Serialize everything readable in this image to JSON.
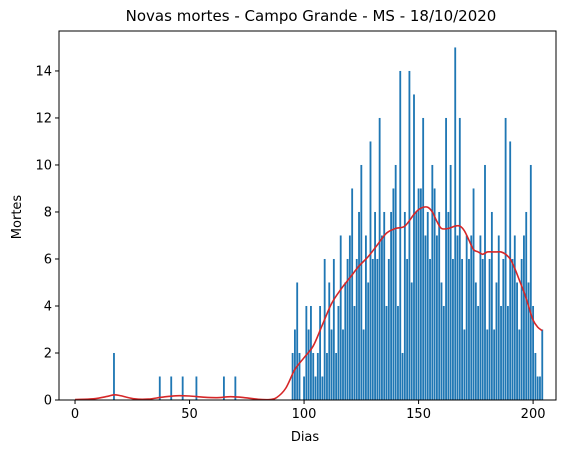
{
  "chart_data": {
    "type": "bar",
    "title": "Novas mortes - Campo Grande - MS - 18/10/2020",
    "xlabel": "Dias",
    "ylabel": "Mortes",
    "xlim": [
      -7,
      210
    ],
    "ylim": [
      0,
      15.7
    ],
    "x_ticks": [
      0,
      50,
      100,
      150,
      200
    ],
    "y_ticks": [
      0,
      2,
      4,
      6,
      8,
      10,
      12,
      14
    ],
    "grid": false,
    "colors": {
      "bars": "#1f77b4",
      "trend": "#d62728",
      "axes": "#000000"
    },
    "series": [
      {
        "kind": "bar",
        "x": [
          17,
          37,
          42,
          47,
          53,
          65,
          70,
          95,
          96,
          97,
          98,
          100,
          101,
          102,
          103,
          104,
          105,
          106,
          107,
          108,
          109,
          110,
          111,
          112,
          113,
          114,
          115,
          116,
          117,
          118,
          119,
          120,
          121,
          122,
          123,
          124,
          125,
          126,
          127,
          128,
          129,
          130,
          131,
          132,
          133,
          134,
          135,
          136,
          137,
          138,
          139,
          140,
          141,
          142,
          143,
          144,
          145,
          146,
          147,
          148,
          149,
          150,
          151,
          152,
          153,
          154,
          155,
          156,
          157,
          158,
          159,
          160,
          161,
          162,
          163,
          164,
          165,
          166,
          167,
          168,
          169,
          170,
          171,
          172,
          173,
          174,
          175,
          176,
          177,
          178,
          179,
          180,
          181,
          182,
          183,
          184,
          185,
          186,
          187,
          188,
          189,
          190,
          191,
          192,
          193,
          194,
          195,
          196,
          197,
          198,
          199,
          200,
          201,
          202,
          203,
          204
        ],
        "values": [
          2,
          1,
          1,
          1,
          1,
          1,
          1,
          2,
          3,
          5,
          2,
          1,
          4,
          3,
          4,
          2,
          1,
          2,
          4,
          1,
          6,
          2,
          5,
          3,
          6,
          2,
          4,
          7,
          3,
          5,
          6,
          7,
          9,
          4,
          6,
          8,
          10,
          3,
          7,
          5,
          11,
          6,
          8,
          6,
          12,
          7,
          8,
          4,
          6,
          8,
          9,
          10,
          4,
          14,
          2,
          8,
          6,
          14,
          5,
          13,
          8,
          9,
          9,
          12,
          7,
          8,
          6,
          10,
          9,
          7,
          8,
          5,
          4,
          12,
          8,
          10,
          6,
          15,
          7,
          12,
          6,
          3,
          7,
          6,
          7,
          9,
          5,
          4,
          7,
          6,
          10,
          3,
          6,
          8,
          3,
          5,
          7,
          4,
          6,
          12,
          4,
          11,
          6,
          7,
          5,
          3,
          6,
          7,
          8,
          5,
          10,
          4,
          2,
          1,
          1,
          3
        ]
      },
      {
        "kind": "line",
        "x": [
          0,
          8,
          14,
          17,
          20,
          26,
          32,
          38,
          44,
          50,
          56,
          62,
          68,
          74,
          80,
          85,
          88,
          92,
          96,
          100,
          104,
          108,
          112,
          116,
          120,
          124,
          128,
          132,
          136,
          140,
          144,
          148,
          150,
          152,
          154,
          156,
          158,
          160,
          163,
          166,
          168,
          170,
          172,
          174,
          176,
          178,
          180,
          182,
          184,
          186,
          188,
          190,
          192,
          194,
          196,
          198,
          200,
          202,
          204
        ],
        "values": [
          0.02,
          0.05,
          0.15,
          0.22,
          0.18,
          0.05,
          0.04,
          0.12,
          0.18,
          0.17,
          0.12,
          0.1,
          0.14,
          0.1,
          0.03,
          0.02,
          0.1,
          0.5,
          1.3,
          1.8,
          2.3,
          3.2,
          4.1,
          4.7,
          5.2,
          5.7,
          6.1,
          6.6,
          7.1,
          7.3,
          7.4,
          7.9,
          8.1,
          8.2,
          8.2,
          8.0,
          7.6,
          7.3,
          7.3,
          7.4,
          7.4,
          7.2,
          6.8,
          6.4,
          6.3,
          6.2,
          6.3,
          6.3,
          6.3,
          6.3,
          6.2,
          6.0,
          5.6,
          5.1,
          4.6,
          4.0,
          3.4,
          3.1,
          2.95
        ]
      }
    ]
  }
}
